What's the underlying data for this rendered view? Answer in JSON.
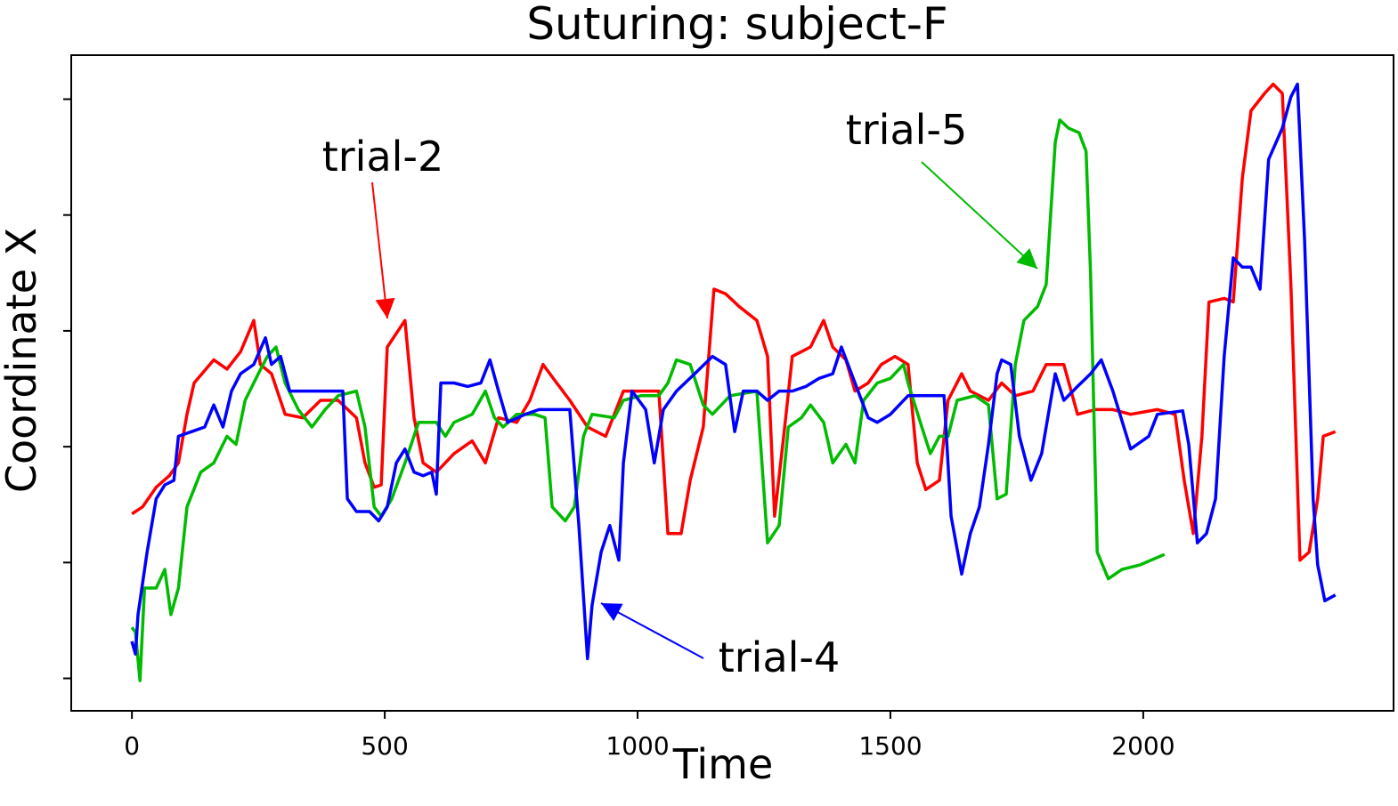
{
  "chart_data": {
    "type": "line",
    "title": "Suturing: subject-F",
    "x_label": "Time",
    "y_label": "Coordinate X",
    "xlim": [
      -120,
      2495
    ],
    "xticks": [
      0,
      500,
      1000,
      1500,
      2000
    ],
    "ylim": [
      -2.28,
      3.38
    ],
    "yticks": [
      -2,
      -1,
      0,
      1,
      2,
      3
    ],
    "series": [
      {
        "name": "trial-2",
        "color": "#ff0000",
        "x": [
          0,
          21,
          48,
          74,
          92,
          109,
          123,
          162,
          188,
          215,
          241,
          254,
          276,
          303,
          338,
          373,
          408,
          444,
          461,
          479,
          493,
          505,
          540,
          558,
          576,
          602,
          637,
          673,
          699,
          725,
          761,
          787,
          813,
          840,
          866,
          901,
          937,
          972,
          1042,
          1060,
          1086,
          1104,
          1130,
          1151,
          1174,
          1201,
          1236,
          1257,
          1271,
          1289,
          1306,
          1342,
          1368,
          1386,
          1412,
          1430,
          1456,
          1482,
          1509,
          1535,
          1553,
          1570,
          1597,
          1614,
          1641,
          1658,
          1694,
          1720,
          1747,
          1782,
          1808,
          1843,
          1870,
          1905,
          1940,
          1975,
          2028,
          2063,
          2081,
          2099,
          2116,
          2130,
          2160,
          2178,
          2196,
          2213,
          2240,
          2257,
          2275,
          2292,
          2310,
          2328,
          2345,
          2356,
          2380
        ],
        "values": [
          -0.58,
          -0.52,
          -0.35,
          -0.25,
          -0.14,
          0.28,
          0.55,
          0.75,
          0.67,
          0.82,
          1.09,
          0.71,
          0.63,
          0.28,
          0.25,
          0.4,
          0.4,
          0.25,
          -0.14,
          -0.35,
          -0.33,
          0.86,
          1.09,
          0.25,
          -0.14,
          -0.22,
          -0.06,
          0.05,
          -0.14,
          0.25,
          0.21,
          0.4,
          0.71,
          0.55,
          0.4,
          0.17,
          0.09,
          0.48,
          0.48,
          -0.75,
          -0.75,
          -0.29,
          0.17,
          1.36,
          1.32,
          1.21,
          1.09,
          0.78,
          -0.6,
          0.09,
          0.78,
          0.86,
          1.09,
          0.86,
          0.75,
          0.48,
          0.55,
          0.71,
          0.78,
          0.71,
          -0.14,
          -0.37,
          -0.29,
          0.4,
          0.63,
          0.48,
          0.4,
          0.55,
          0.44,
          0.48,
          0.71,
          0.71,
          0.28,
          0.32,
          0.32,
          0.28,
          0.32,
          0.28,
          -0.29,
          -0.75,
          0.09,
          1.25,
          1.28,
          1.25,
          2.32,
          2.9,
          3.05,
          3.13,
          3.05,
          1.4,
          -0.98,
          -0.91,
          -0.45,
          0.09,
          0.13
        ]
      },
      {
        "name": "trial-5",
        "color": "#00bb00",
        "x": [
          0,
          7,
          16,
          25,
          48,
          65,
          77,
          92,
          109,
          136,
          162,
          188,
          206,
          224,
          250,
          268,
          285,
          303,
          329,
          356,
          382,
          408,
          444,
          461,
          479,
          493,
          514,
          540,
          567,
          602,
          620,
          637,
          673,
          699,
          717,
          734,
          761,
          796,
          817,
          831,
          857,
          875,
          893,
          910,
          954,
          972,
          1007,
          1042,
          1060,
          1077,
          1104,
          1130,
          1148,
          1183,
          1236,
          1257,
          1280,
          1298,
          1324,
          1342,
          1368,
          1386,
          1412,
          1430,
          1447,
          1474,
          1500,
          1526,
          1535,
          1562,
          1579,
          1597,
          1614,
          1632,
          1667,
          1694,
          1711,
          1729,
          1747,
          1764,
          1791,
          1808,
          1826,
          1835,
          1852,
          1873,
          1887,
          1896,
          1909,
          1931,
          1958,
          1994,
          2042
        ],
        "values": [
          -1.56,
          -1.6,
          -2.02,
          -1.22,
          -1.22,
          -1.06,
          -1.45,
          -1.22,
          -0.52,
          -0.22,
          -0.14,
          0.09,
          0.02,
          0.4,
          0.63,
          0.78,
          0.86,
          0.55,
          0.32,
          0.17,
          0.32,
          0.44,
          0.48,
          0.17,
          -0.52,
          -0.6,
          -0.45,
          -0.14,
          0.21,
          0.21,
          0.09,
          0.21,
          0.28,
          0.48,
          0.25,
          0.17,
          0.28,
          0.28,
          0.25,
          -0.52,
          -0.64,
          -0.52,
          0.09,
          0.28,
          0.25,
          0.4,
          0.44,
          0.44,
          0.55,
          0.75,
          0.71,
          0.36,
          0.28,
          0.44,
          0.48,
          -0.83,
          -0.68,
          0.17,
          0.25,
          0.36,
          0.21,
          -0.14,
          0.02,
          -0.14,
          0.4,
          0.55,
          0.59,
          0.71,
          0.55,
          0.17,
          -0.06,
          0.09,
          0.09,
          0.4,
          0.44,
          0.36,
          -0.45,
          -0.41,
          0.71,
          1.09,
          1.21,
          1.4,
          2.63,
          2.82,
          2.75,
          2.71,
          2.55,
          1.48,
          -0.91,
          -1.14,
          -1.06,
          -1.02,
          -0.93
        ]
      },
      {
        "name": "trial-4",
        "color": "#0000ff",
        "x": [
          0,
          7,
          12,
          30,
          48,
          65,
          83,
          92,
          118,
          144,
          162,
          180,
          197,
          215,
          241,
          264,
          276,
          294,
          312,
          356,
          417,
          426,
          444,
          470,
          488,
          505,
          523,
          540,
          558,
          576,
          593,
          602,
          611,
          637,
          664,
          690,
          708,
          725,
          743,
          778,
          805,
          822,
          866,
          884,
          901,
          910,
          928,
          945,
          963,
          972,
          989,
          1016,
          1033,
          1051,
          1077,
          1113,
          1148,
          1174,
          1192,
          1209,
          1236,
          1257,
          1280,
          1306,
          1333,
          1359,
          1386,
          1403,
          1430,
          1456,
          1474,
          1500,
          1535,
          1606,
          1620,
          1641,
          1658,
          1676,
          1694,
          1711,
          1720,
          1738,
          1755,
          1778,
          1799,
          1826,
          1843,
          1870,
          1896,
          1917,
          1940,
          1975,
          2011,
          2028,
          2078,
          2090,
          2107,
          2125,
          2143,
          2160,
          2178,
          2196,
          2213,
          2231,
          2248,
          2275,
          2292,
          2305,
          2319,
          2336,
          2345,
          2359,
          2380
        ],
        "values": [
          -1.68,
          -1.79,
          -1.45,
          -0.91,
          -0.45,
          -0.33,
          -0.29,
          0.09,
          0.13,
          0.17,
          0.36,
          0.17,
          0.48,
          0.63,
          0.71,
          0.94,
          0.71,
          0.78,
          0.48,
          0.48,
          0.48,
          -0.45,
          -0.56,
          -0.56,
          -0.64,
          -0.52,
          -0.14,
          -0.02,
          -0.22,
          -0.25,
          -0.22,
          -0.41,
          0.55,
          0.55,
          0.52,
          0.55,
          0.75,
          0.48,
          0.21,
          0.28,
          0.32,
          0.32,
          0.32,
          -0.68,
          -1.83,
          -1.37,
          -0.91,
          -0.68,
          -0.98,
          -0.14,
          0.48,
          0.32,
          -0.14,
          0.32,
          0.48,
          0.63,
          0.78,
          0.71,
          0.13,
          0.48,
          0.48,
          0.4,
          0.48,
          0.48,
          0.52,
          0.59,
          0.63,
          0.86,
          0.55,
          0.25,
          0.21,
          0.28,
          0.44,
          0.44,
          -0.6,
          -1.1,
          -0.75,
          -0.52,
          0.02,
          0.63,
          0.75,
          0.71,
          0.09,
          -0.29,
          -0.06,
          0.63,
          0.4,
          0.52,
          0.63,
          0.75,
          0.48,
          -0.02,
          0.09,
          0.28,
          0.31,
          0.02,
          -0.83,
          -0.75,
          -0.45,
          0.78,
          1.63,
          1.55,
          1.55,
          1.36,
          2.48,
          2.75,
          3.02,
          3.13,
          1.78,
          -0.45,
          -1.02,
          -1.33,
          -1.28
        ]
      }
    ]
  }
}
